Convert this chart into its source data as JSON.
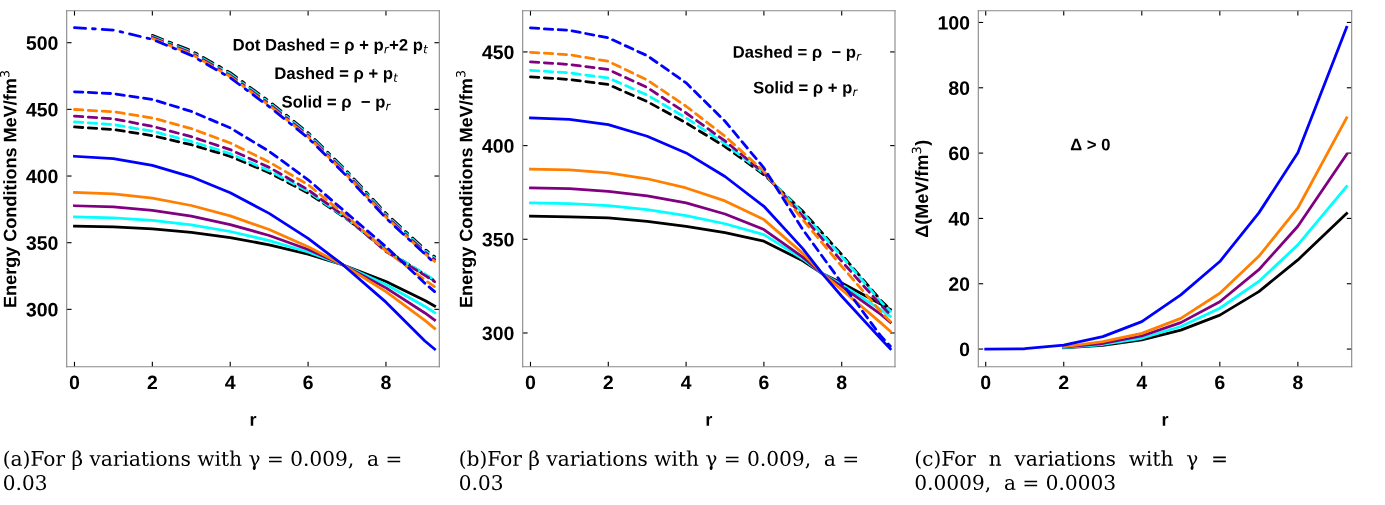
{
  "chart_data": [
    {
      "type": "line",
      "title": "(a)For β variations with γ = 0.009,  a =\n0.03",
      "xlabel": "r",
      "ylabel": "Energy Conditions MeV/fm$^{3}$",
      "xlim": [
        -0.2,
        9.37
      ],
      "ylim": [
        257,
        524
      ],
      "xticks": [
        0,
        2,
        4,
        6,
        8
      ],
      "yticks": [
        300,
        350,
        400,
        450,
        500
      ],
      "annotations": [
        "Dot Dashed = ρ + p$_{r}$+2 p$_{t}$",
        "Dashed = ρ + p$_{t}$",
        "Solid = ρ  − p$_{r}$"
      ],
      "series": [
        {
          "color": "#000000",
          "line_style": "solid",
          "x": [
            0,
            1,
            2,
            3,
            4,
            5,
            6,
            6.9,
            8,
            9,
            9.25
          ],
          "values": [
            362.4,
            361.9,
            360.4,
            357.7,
            353.8,
            348.4,
            341.4,
            333.3,
            320.9,
            306.6,
            302.5
          ]
        },
        {
          "color": "#00ffff",
          "line_style": "solid",
          "x": [
            0,
            1,
            2,
            3,
            4,
            5,
            6,
            6.9,
            8,
            9,
            9.25
          ],
          "values": [
            369.4,
            368.7,
            366.8,
            363.3,
            358.4,
            351.6,
            343,
            333.3,
            318.6,
            302.2,
            297.5
          ]
        },
        {
          "color": "#800080",
          "line_style": "solid",
          "x": [
            0,
            1,
            2,
            3,
            4,
            5,
            6,
            6.9,
            8,
            9,
            9.25
          ],
          "values": [
            377.7,
            376.8,
            374.3,
            369.9,
            363.6,
            355.4,
            344.9,
            333.3,
            316.1,
            297.3,
            292
          ]
        },
        {
          "color": "#ff8000",
          "line_style": "solid",
          "x": [
            0,
            1,
            2,
            3,
            4,
            5,
            6,
            6.9,
            8,
            9,
            9.25
          ],
          "values": [
            387.7,
            386.6,
            383.4,
            377.9,
            370.1,
            359.9,
            347,
            333.3,
            313.3,
            291.7,
            285.7
          ]
        },
        {
          "color": "#0000ff",
          "line_style": "solid",
          "x": [
            0,
            1,
            2,
            3,
            4,
            5,
            6,
            6.9,
            8,
            9,
            9.25
          ],
          "values": [
            414.8,
            413.1,
            408,
            399.4,
            387.4,
            372,
            353.2,
            333.3,
            305.4,
            276.3,
            270.2
          ]
        },
        {
          "color": "#000000",
          "line_style": "dashed",
          "x": [
            0,
            1,
            2,
            3,
            4,
            5,
            6,
            7,
            8,
            9,
            9.25
          ],
          "values": [
            436.8,
            434.9,
            430.3,
            423.5,
            414.8,
            402.5,
            387.2,
            367.7,
            344.6,
            326,
            321.5
          ]
        },
        {
          "color": "#00ffff",
          "line_style": "dashed",
          "x": [
            0,
            1,
            2,
            3,
            4,
            5,
            6,
            7,
            8,
            9,
            9.25
          ],
          "values": [
            440.6,
            438.6,
            433.6,
            426,
            416.8,
            404,
            388.5,
            368,
            344,
            326.5,
            322
          ]
        },
        {
          "color": "#800080",
          "line_style": "dashed",
          "x": [
            0,
            1,
            2,
            3,
            4,
            5,
            6,
            7,
            8,
            9,
            9.25
          ],
          "values": [
            444.9,
            442.9,
            437.3,
            429.5,
            419.8,
            406.5,
            389.7,
            368.4,
            343.4,
            325.5,
            320.8
          ]
        },
        {
          "color": "#ff8000",
          "line_style": "dashed",
          "x": [
            0,
            1,
            2,
            3,
            4,
            5,
            6,
            7,
            8,
            9,
            9.25
          ],
          "values": [
            449.9,
            448.2,
            443.6,
            435.6,
            424.8,
            410.5,
            393.5,
            369.7,
            344,
            322,
            317
          ]
        },
        {
          "color": "#0000ff",
          "line_style": "dashed",
          "x": [
            0,
            1,
            2,
            3,
            4,
            5,
            6,
            7,
            8,
            9,
            9.25
          ],
          "values": [
            463.2,
            461.8,
            457.4,
            448.5,
            436.1,
            418.5,
            397.2,
            372,
            347,
            319.5,
            313.3
          ]
        },
        {
          "color": "#000000",
          "line_style": "dashdot",
          "x": [
            2,
            3,
            4,
            5,
            6,
            7,
            8,
            9,
            9.25
          ],
          "values": [
            505.5,
            494,
            477.5,
            456,
            432.5,
            403.5,
            372,
            345,
            339.5
          ]
        },
        {
          "color": "#00ffff",
          "line_style": "dashdot",
          "x": [
            2,
            3,
            4,
            5,
            6,
            7,
            8,
            9,
            9.25
          ],
          "values": [
            504.7,
            493,
            476.5,
            455,
            431.5,
            402.5,
            371,
            344,
            338.5
          ]
        },
        {
          "color": "#800080",
          "line_style": "dashdot",
          "x": [
            2,
            3,
            4,
            5,
            6,
            7,
            8,
            9,
            9.25
          ],
          "values": [
            504,
            492.3,
            475.5,
            454,
            430.5,
            401.5,
            370,
            343,
            337.5
          ]
        },
        {
          "color": "#ff8000",
          "line_style": "dashdot",
          "x": [
            2,
            3,
            4,
            5,
            6,
            7,
            8,
            9,
            9.25
          ],
          "values": [
            503.2,
            491.5,
            474.6,
            453,
            429.5,
            400.6,
            369.2,
            341.8,
            336
          ]
        },
        {
          "color": "#0000ff",
          "line_style": "dashdot",
          "x": [
            0,
            1,
            2,
            3,
            4,
            5,
            6,
            7,
            8,
            9,
            9.25
          ],
          "values": [
            511.3,
            509.5,
            502.5,
            490.5,
            473.7,
            452,
            428.6,
            399.7,
            368.4,
            341.5,
            334.6
          ]
        }
      ]
    },
    {
      "type": "line",
      "title": "(b)For β variations with γ = 0.009,  a =\n0.03",
      "xlabel": "r",
      "ylabel": "Energy Conditions MeV/fm$^{3}$",
      "xlim": [
        -0.2,
        9.37
      ],
      "ylim": [
        282,
        472
      ],
      "xticks": [
        0,
        2,
        4,
        6,
        8
      ],
      "yticks": [
        300,
        350,
        400,
        450
      ],
      "annotations": [
        "Dashed = ρ  − p$_{r}$",
        "Solid = ρ + p$_{r}$"
      ],
      "series": [
        {
          "color": "#000000",
          "line_style": "solid",
          "x": [
            0,
            1,
            2,
            3,
            4,
            5,
            6,
            7,
            7.5,
            8,
            9,
            9.25
          ],
          "values": [
            362.3,
            362,
            361.4,
            359.6,
            356.9,
            353.5,
            349,
            338.5,
            331.7,
            326.7,
            315.5,
            312.5
          ]
        },
        {
          "color": "#00ffff",
          "line_style": "solid",
          "x": [
            0,
            1,
            2,
            3,
            4,
            5,
            6,
            7,
            7.5,
            8,
            9,
            9.25
          ],
          "values": [
            369.4,
            369,
            368,
            365.8,
            362.6,
            358.3,
            352.5,
            339.5,
            331.7,
            325.8,
            312.5,
            308.9
          ]
        },
        {
          "color": "#800080",
          "line_style": "solid",
          "x": [
            0,
            1,
            2,
            3,
            4,
            5,
            6,
            7,
            7.5,
            8,
            9,
            9.25
          ],
          "values": [
            377.4,
            377,
            375.6,
            373.2,
            369.4,
            363.5,
            355.2,
            340.5,
            331.7,
            324.9,
            310,
            305.7
          ]
        },
        {
          "color": "#ff8000",
          "line_style": "solid",
          "x": [
            0,
            1,
            2,
            3,
            4,
            5,
            6,
            7,
            7.5,
            8,
            9,
            9.25
          ],
          "values": [
            387.5,
            387,
            385.4,
            382.3,
            377.4,
            370.5,
            360.5,
            342.5,
            331.7,
            323.1,
            305.5,
            300.9
          ]
        },
        {
          "color": "#0000ff",
          "line_style": "solid",
          "x": [
            0,
            1,
            2,
            3,
            4,
            5,
            6,
            7,
            7.5,
            8,
            9,
            9.25
          ],
          "values": [
            414.8,
            414,
            411.2,
            405,
            396.1,
            383.5,
            367.6,
            345,
            331.7,
            319.6,
            297,
            291.5
          ]
        },
        {
          "color": "#000000",
          "line_style": "dashed",
          "x": [
            0,
            1,
            2,
            3,
            4,
            5,
            6,
            7,
            8,
            9,
            9.25
          ],
          "values": [
            436.7,
            435.3,
            432.6,
            423.5,
            412.1,
            399.5,
            384.5,
            364.9,
            341.8,
            317.5,
            312.5
          ]
        },
        {
          "color": "#00ffff",
          "line_style": "dashed",
          "x": [
            0,
            1,
            2,
            3,
            4,
            5,
            6,
            7,
            8,
            9,
            9.25
          ],
          "values": [
            440.2,
            438.8,
            436.1,
            427,
            414.8,
            401,
            385.1,
            364,
            340.9,
            316.8,
            311.6
          ]
        },
        {
          "color": "#800080",
          "line_style": "dashed",
          "x": [
            0,
            1,
            2,
            3,
            4,
            5,
            6,
            7,
            8,
            9,
            9.25
          ],
          "values": [
            444.7,
            443.3,
            440.6,
            431,
            417.4,
            402.5,
            385.4,
            362.3,
            338.3,
            315,
            309.8
          ]
        },
        {
          "color": "#ff8000",
          "line_style": "dashed",
          "x": [
            0,
            1,
            2,
            3,
            4,
            5,
            6,
            7,
            8,
            9,
            9.25
          ],
          "values": [
            449.8,
            448.5,
            445,
            435,
            421,
            405,
            386.3,
            360.5,
            335.6,
            311.5,
            306.2
          ]
        },
        {
          "color": "#0000ff",
          "line_style": "dashed",
          "x": [
            0,
            1,
            2,
            3,
            4,
            5,
            6,
            7,
            8,
            9,
            9.25
          ],
          "values": [
            462.8,
            461.5,
            457.5,
            448,
            433.5,
            413,
            388.1,
            355.2,
            326.7,
            298.5,
            292.9
          ]
        }
      ]
    },
    {
      "type": "line",
      "title": "(c)For  n  variations  with  γ  =\n0.0009,  a = 0.0003",
      "xlabel": "r",
      "ylabel": "Δ(MeV/fm$^{3}$)",
      "xlim": [
        -0.19,
        9.38
      ],
      "ylim": [
        -5.4,
        103.6
      ],
      "xticks": [
        0,
        2,
        4,
        6,
        8
      ],
      "yticks": [
        0,
        20,
        40,
        60,
        80,
        100
      ],
      "annotations": [
        "Δ > 0"
      ],
      "series": [
        {
          "color": "#000000",
          "line_style": "solid",
          "x": [
            2,
            3,
            4,
            5,
            6,
            7,
            8,
            9.25
          ],
          "values": [
            0.4,
            1.1,
            2.8,
            5.8,
            10.4,
            17.6,
            27.3,
            41.5
          ]
        },
        {
          "color": "#00ffff",
          "line_style": "solid",
          "x": [
            2,
            3,
            4,
            5,
            6,
            7,
            8,
            9.25
          ],
          "values": [
            0.5,
            1.4,
            3.3,
            6.9,
            12.5,
            20.7,
            31.9,
            49.8
          ]
        },
        {
          "color": "#800080",
          "line_style": "solid",
          "x": [
            2,
            3,
            4,
            5,
            6,
            7,
            8,
            9.25
          ],
          "values": [
            0.6,
            1.7,
            4,
            8.1,
            14.5,
            24.3,
            37.6,
            59.6
          ]
        },
        {
          "color": "#ff8000",
          "line_style": "solid",
          "x": [
            2,
            3,
            4,
            5,
            6,
            7,
            8,
            9.25
          ],
          "values": [
            0.7,
            2.3,
            4.8,
            9.4,
            17.1,
            28.4,
            43.2,
            70.8
          ]
        },
        {
          "color": "#0000ff",
          "line_style": "solid",
          "x": [
            0,
            1,
            2,
            3,
            4,
            5,
            6,
            7,
            8,
            9.25
          ],
          "values": [
            0,
            0.1,
            1.2,
            3.8,
            8.4,
            16.6,
            26.8,
            41.7,
            60.1,
            98.5
          ]
        }
      ]
    }
  ]
}
